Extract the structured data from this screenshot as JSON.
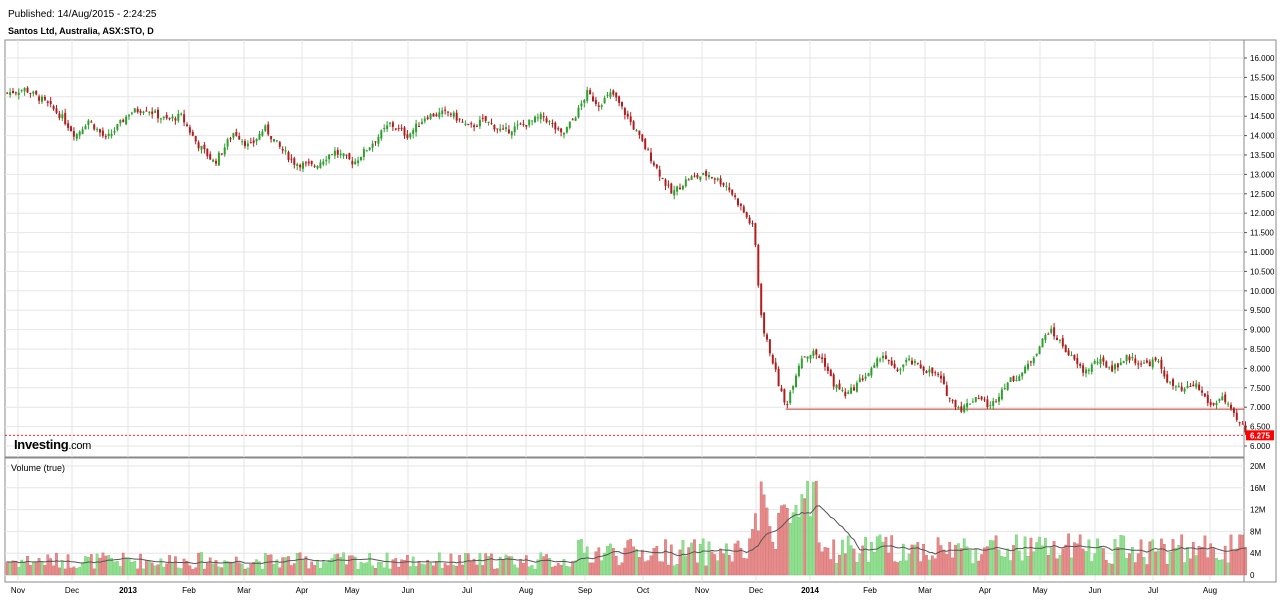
{
  "header": {
    "published": "Published: 14/Aug/2015 - 2:24:25",
    "symbol": "Santos Ltd, Australia, ASX:STO, D"
  },
  "watermark": {
    "brand": "Investing",
    "suffix": ".com"
  },
  "colors": {
    "up": "#2e9e2e",
    "down": "#b11d1d",
    "vol_up": "#8fe08f",
    "vol_down": "#e88a8a",
    "grid": "#e6e6e6",
    "support": "#c0392b",
    "price_tag": "#ff0000",
    "ma": "#555555"
  },
  "chart_data": [
    {
      "type": "candlestick",
      "title": "Santos Ltd, Australia, ASX:STO, D",
      "x_tick_labels": [
        "Nov",
        "Dec",
        "2013",
        "Feb",
        "Mar",
        "Apr",
        "May",
        "Jun",
        "Jul",
        "Aug",
        "Sep",
        "Oct",
        "Nov",
        "Dec",
        "2014",
        "Feb",
        "Mar",
        "Apr",
        "May",
        "Jun",
        "Jul",
        "Aug"
      ],
      "y_tick_labels": [
        "16.000",
        "15.500",
        "15.000",
        "14.500",
        "14.000",
        "13.500",
        "13.000",
        "12.500",
        "12.000",
        "11.500",
        "11.000",
        "10.500",
        "10.000",
        "9.500",
        "9.000",
        "8.500",
        "8.000",
        "7.500",
        "7.000",
        "6.500",
        "6.000"
      ],
      "ylim": [
        5.8,
        16.2
      ],
      "grid": true,
      "last_price": 6.275,
      "last_price_label": "6.275",
      "support_level": 6.95,
      "close_path": [
        [
          "2012-10-26",
          15.1
        ],
        [
          "2012-11-05",
          15.2
        ],
        [
          "2012-11-15",
          14.9
        ],
        [
          "2012-11-25",
          14.5
        ],
        [
          "2012-12-03",
          14.0
        ],
        [
          "2012-12-10",
          14.4
        ],
        [
          "2012-12-20",
          13.9
        ],
        [
          "2013-01-02",
          14.6
        ],
        [
          "2013-01-10",
          14.7
        ],
        [
          "2013-01-20",
          14.4
        ],
        [
          "2013-01-28",
          14.5
        ],
        [
          "2013-02-05",
          13.8
        ],
        [
          "2013-02-14",
          13.3
        ],
        [
          "2013-02-24",
          14.1
        ],
        [
          "2013-03-04",
          13.7
        ],
        [
          "2013-03-12",
          14.2
        ],
        [
          "2013-03-20",
          13.7
        ],
        [
          "2013-03-28",
          13.3
        ],
        [
          "2013-04-08",
          13.2
        ],
        [
          "2013-04-20",
          13.6
        ],
        [
          "2013-05-02",
          13.3
        ],
        [
          "2013-05-12",
          13.8
        ],
        [
          "2013-05-22",
          14.3
        ],
        [
          "2013-06-01",
          14.0
        ],
        [
          "2013-06-10",
          14.5
        ],
        [
          "2013-06-22",
          14.6
        ],
        [
          "2013-07-02",
          14.2
        ],
        [
          "2013-07-10",
          14.4
        ],
        [
          "2013-07-20",
          14.1
        ],
        [
          "2013-08-01",
          14.3
        ],
        [
          "2013-08-10",
          14.5
        ],
        [
          "2013-08-20",
          14.0
        ],
        [
          "2013-08-28",
          14.6
        ],
        [
          "2013-09-02",
          15.1
        ],
        [
          "2013-09-08",
          14.8
        ],
        [
          "2013-09-15",
          15.1
        ],
        [
          "2013-09-24",
          14.4
        ],
        [
          "2013-10-02",
          13.7
        ],
        [
          "2013-10-10",
          13.0
        ],
        [
          "2013-10-16",
          12.5
        ],
        [
          "2013-10-25",
          12.9
        ],
        [
          "2013-11-05",
          13.0
        ],
        [
          "2013-11-15",
          12.7
        ],
        [
          "2013-11-22",
          12.2
        ],
        [
          "2013-11-27",
          11.8
        ],
        [
          "2013-11-30",
          11.6
        ],
        [
          "2013-12-02",
          10.3
        ],
        [
          "2013-12-05",
          9.0
        ],
        [
          "2013-12-10",
          8.3
        ],
        [
          "2013-12-14",
          7.6
        ],
        [
          "2013-12-18",
          7.0
        ],
        [
          "2013-12-22",
          7.6
        ],
        [
          "2013-12-27",
          8.3
        ],
        [
          "2014-01-03",
          8.4
        ],
        [
          "2014-01-08",
          8.2
        ],
        [
          "2014-01-13",
          7.6
        ],
        [
          "2014-01-20",
          7.3
        ],
        [
          "2014-01-27",
          7.7
        ],
        [
          "2014-02-03",
          8.0
        ],
        [
          "2014-02-07",
          8.4
        ],
        [
          "2014-02-14",
          7.9
        ],
        [
          "2014-02-20",
          8.2
        ],
        [
          "2014-02-28",
          8.0
        ],
        [
          "2014-03-08",
          7.8
        ],
        [
          "2014-03-14",
          7.2
        ],
        [
          "2014-03-20",
          6.95
        ],
        [
          "2014-03-28",
          7.3
        ],
        [
          "2014-04-04",
          7.0
        ],
        [
          "2014-04-12",
          7.6
        ],
        [
          "2014-04-22",
          7.9
        ],
        [
          "2014-05-01",
          8.6
        ],
        [
          "2014-05-06",
          9.0
        ],
        [
          "2014-05-12",
          8.7
        ],
        [
          "2014-05-20",
          8.2
        ],
        [
          "2014-05-26",
          7.9
        ],
        [
          "2014-06-02",
          8.2
        ],
        [
          "2014-06-10",
          8.0
        ],
        [
          "2014-06-18",
          8.3
        ],
        [
          "2014-06-26",
          8.1
        ],
        [
          "2014-07-03",
          8.2
        ],
        [
          "2014-07-10",
          7.6
        ],
        [
          "2014-07-17",
          7.4
        ],
        [
          "2014-07-24",
          7.6
        ],
        [
          "2014-08-02",
          7.0
        ],
        [
          "2014-08-07",
          7.3
        ],
        [
          "2014-08-12",
          6.9
        ],
        [
          "2014-08-16",
          6.6
        ],
        [
          "2014-08-19",
          6.5
        ],
        [
          "2014-08-21",
          6.275
        ]
      ]
    },
    {
      "type": "bar",
      "title": "Volume (true)",
      "y_tick_labels": [
        "20M",
        "16M",
        "12M",
        "8M",
        "4M",
        "0"
      ],
      "ylim": [
        0,
        20000000
      ],
      "ma_note": "moving average line overlay"
    }
  ]
}
